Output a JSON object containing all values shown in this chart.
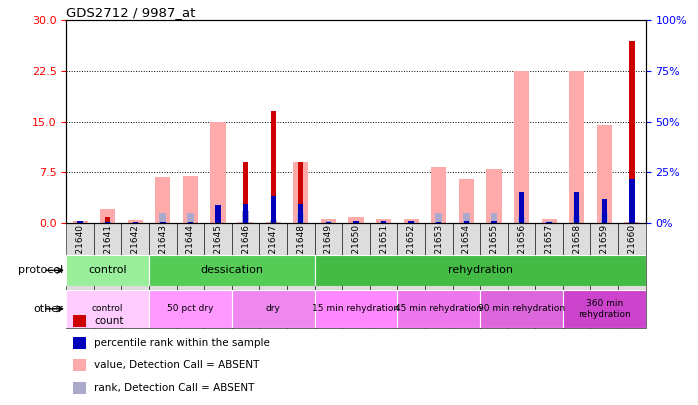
{
  "title": "GDS2712 / 9987_at",
  "samples": [
    "GSM21640",
    "GSM21641",
    "GSM21642",
    "GSM21643",
    "GSM21644",
    "GSM21645",
    "GSM21646",
    "GSM21647",
    "GSM21648",
    "GSM21649",
    "GSM21650",
    "GSM21651",
    "GSM21652",
    "GSM21653",
    "GSM21654",
    "GSM21655",
    "GSM21656",
    "GSM21657",
    "GSM21658",
    "GSM21659",
    "GSM21660"
  ],
  "count_values": [
    0.05,
    0.9,
    0.05,
    0.05,
    0.05,
    0.05,
    9.0,
    16.5,
    9.0,
    0.05,
    0.05,
    0.05,
    0.05,
    0.05,
    0.05,
    0.05,
    0.05,
    0.05,
    0.05,
    0.05,
    27.0
  ],
  "rank_pct": [
    1.0,
    0.5,
    0.5,
    0.5,
    0.5,
    9.0,
    9.5,
    13.0,
    9.5,
    0.5,
    1.0,
    1.0,
    1.0,
    0.5,
    1.0,
    1.0,
    15.0,
    0.5,
    15.0,
    11.5,
    21.5
  ],
  "absent_value": [
    0.2,
    2.0,
    0.4,
    6.8,
    7.0,
    15.0,
    0.1,
    0.1,
    9.0,
    0.5,
    0.8,
    0.5,
    0.5,
    8.2,
    6.5,
    7.9,
    22.5,
    0.5,
    22.5,
    14.5,
    0.1
  ],
  "absent_rank_pct": [
    0.5,
    1.0,
    0.3,
    5.0,
    5.0,
    1.5,
    6.0,
    1.5,
    5.0,
    1.0,
    1.0,
    1.0,
    1.0,
    5.0,
    5.0,
    5.0,
    3.0,
    1.0,
    3.5,
    5.0,
    0.5
  ],
  "ylim_left": [
    0,
    30
  ],
  "ylim_right": [
    0,
    100
  ],
  "yticks_left": [
    0,
    7.5,
    15,
    22.5,
    30
  ],
  "yticks_right": [
    0,
    25,
    50,
    75,
    100
  ],
  "color_count": "#cc0000",
  "color_rank": "#0000bb",
  "color_absent_value": "#ffaaaa",
  "color_absent_rank": "#aaaacc",
  "color_xtick_bg": "#dddddd",
  "protocol_groups": [
    {
      "label": "control",
      "start": 0,
      "end": 3,
      "color": "#99ee99"
    },
    {
      "label": "dessication",
      "start": 3,
      "end": 9,
      "color": "#55cc55"
    },
    {
      "label": "rehydration",
      "start": 9,
      "end": 21,
      "color": "#44bb44"
    }
  ],
  "other_groups": [
    {
      "label": "control",
      "start": 0,
      "end": 3,
      "color": "#ffccff"
    },
    {
      "label": "50 pct dry",
      "start": 3,
      "end": 6,
      "color": "#ff99ff"
    },
    {
      "label": "dry",
      "start": 6,
      "end": 9,
      "color": "#ee88ee"
    },
    {
      "label": "15 min rehydration",
      "start": 9,
      "end": 12,
      "color": "#ff88ff"
    },
    {
      "label": "45 min rehydration",
      "start": 12,
      "end": 15,
      "color": "#ee77ee"
    },
    {
      "label": "90 min rehydration",
      "start": 15,
      "end": 18,
      "color": "#dd66dd"
    },
    {
      "label": "360 min\nrehydration",
      "start": 18,
      "end": 21,
      "color": "#cc44cc"
    }
  ],
  "legend_items": [
    {
      "color": "#cc0000",
      "label": "count"
    },
    {
      "color": "#0000bb",
      "label": "percentile rank within the sample"
    },
    {
      "color": "#ffaaaa",
      "label": "value, Detection Call = ABSENT"
    },
    {
      "color": "#aaaacc",
      "label": "rank, Detection Call = ABSENT"
    }
  ]
}
